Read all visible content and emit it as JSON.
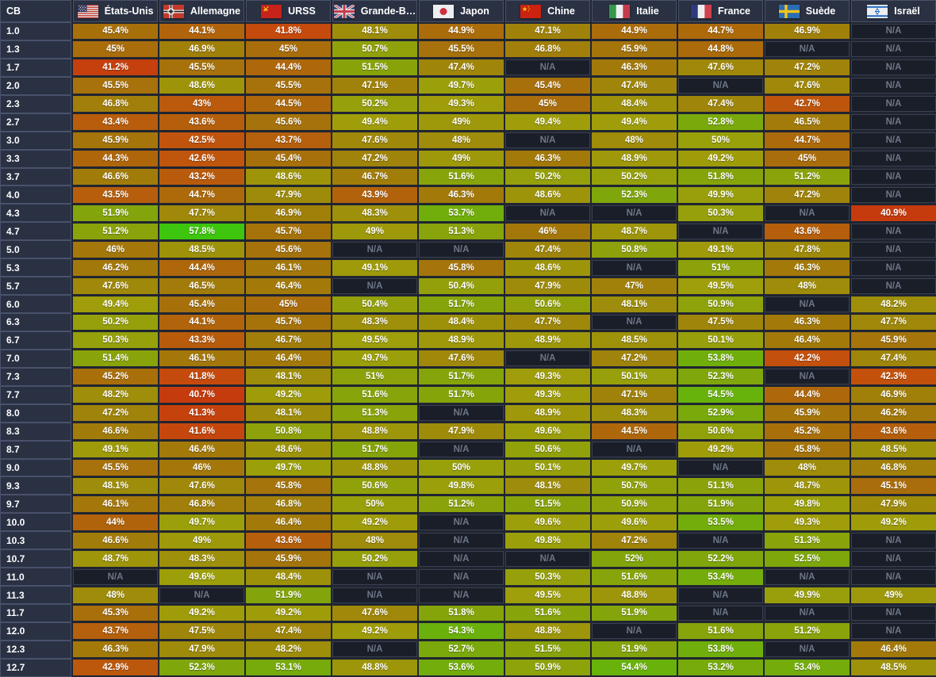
{
  "table": {
    "corner_label": "CB",
    "na_label": "N/A",
    "columns": [
      {
        "label": "États-Unis",
        "flag": "us"
      },
      {
        "label": "Allemagne",
        "flag": "de"
      },
      {
        "label": "URSS",
        "flag": "su"
      },
      {
        "label": "Grande-B…",
        "flag": "gb"
      },
      {
        "label": "Japon",
        "flag": "jp"
      },
      {
        "label": "Chine",
        "flag": "cn"
      },
      {
        "label": "Italie",
        "flag": "it"
      },
      {
        "label": "France",
        "flag": "fr"
      },
      {
        "label": "Suède",
        "flag": "se"
      },
      {
        "label": "Israël",
        "flag": "il"
      }
    ]
  },
  "colors": {
    "gap_bg": "#202531",
    "label_bg": "#2a3143",
    "border": "#49516b",
    "cell_text": "#ffffff",
    "na_bg": "#191e29",
    "na_border": "#394050",
    "na_text": "#6e7787",
    "scale_low": "#bf4a0e",
    "scale_mid": "#9e920a",
    "scale_high": "#3dc40f"
  },
  "chart_data": {
    "type": "heatmap",
    "unit": "%",
    "x_axis_label": "Nation",
    "y_axis_label": "CB",
    "x_categories": [
      "États-Unis",
      "Allemagne",
      "URSS",
      "Grande-B…",
      "Japon",
      "Chine",
      "Italie",
      "France",
      "Suède",
      "Israël"
    ],
    "y_categories": [
      "1.0",
      "1.3",
      "1.7",
      "2.0",
      "2.3",
      "2.7",
      "3.0",
      "3.3",
      "3.7",
      "4.0",
      "4.3",
      "4.7",
      "5.0",
      "5.3",
      "5.7",
      "6.0",
      "6.3",
      "6.7",
      "7.0",
      "7.3",
      "7.7",
      "8.0",
      "8.3",
      "8.7",
      "9.0",
      "9.3",
      "9.7",
      "10.0",
      "10.3",
      "10.7",
      "11.0",
      "11.3",
      "11.7",
      "12.0",
      "12.3",
      "12.7"
    ],
    "color_scale": {
      "low_value": 41,
      "high_value": 58,
      "low_color": "#bf4a0e",
      "high_color": "#3dc40f"
    },
    "values": [
      [
        45.4,
        44.1,
        41.8,
        48.1,
        44.9,
        47.1,
        44.9,
        44.7,
        46.9,
        null
      ],
      [
        45,
        46.9,
        45,
        50.7,
        45.5,
        46.8,
        45.9,
        44.8,
        null,
        null
      ],
      [
        41.2,
        45.5,
        44.4,
        51.5,
        47.4,
        null,
        46.3,
        47.6,
        47.2,
        null
      ],
      [
        45.5,
        48.6,
        45.5,
        47.1,
        49.7,
        45.4,
        47.4,
        null,
        47.6,
        null
      ],
      [
        46.8,
        43,
        44.5,
        50.2,
        49.3,
        45,
        48.4,
        47.4,
        42.7,
        null
      ],
      [
        43.4,
        43.6,
        45.6,
        49.4,
        49,
        49.4,
        49.4,
        52.8,
        46.5,
        null
      ],
      [
        45.9,
        42.5,
        43.7,
        47.6,
        48,
        null,
        48,
        50,
        44.7,
        null
      ],
      [
        44.3,
        42.6,
        45.4,
        47.2,
        49,
        46.3,
        48.9,
        49.2,
        45,
        null
      ],
      [
        46.6,
        43.2,
        48.6,
        46.7,
        51.6,
        50.2,
        50.2,
        51.8,
        51.2,
        null
      ],
      [
        43.5,
        44.7,
        47.9,
        43.9,
        46.3,
        48.6,
        52.3,
        49.9,
        47.2,
        null
      ],
      [
        51.9,
        47.7,
        46.9,
        48.3,
        53.7,
        null,
        null,
        50.3,
        null,
        40.9
      ],
      [
        51.2,
        57.8,
        45.7,
        49,
        51.3,
        46,
        48.7,
        null,
        43.6,
        null
      ],
      [
        46,
        48.5,
        45.6,
        null,
        null,
        47.4,
        50.8,
        49.1,
        47.8,
        null
      ],
      [
        46.2,
        44.4,
        46.1,
        49.1,
        45.8,
        48.6,
        null,
        51,
        46.3,
        null
      ],
      [
        47.6,
        46.5,
        46.4,
        null,
        50.4,
        47.9,
        47,
        49.5,
        48,
        null
      ],
      [
        49.4,
        45.4,
        45,
        50.4,
        51.7,
        50.6,
        48.1,
        50.9,
        null,
        48.2
      ],
      [
        50.2,
        44.1,
        45.7,
        48.3,
        48.4,
        47.7,
        null,
        47.5,
        46.3,
        47.7
      ],
      [
        50.3,
        43.3,
        46.7,
        49.5,
        48.9,
        48.9,
        48.5,
        50.1,
        46.4,
        45.9
      ],
      [
        51.4,
        46.1,
        46.4,
        49.7,
        47.6,
        null,
        47.2,
        53.8,
        42.2,
        47.4
      ],
      [
        45.2,
        41.8,
        48.1,
        51,
        51.7,
        49.3,
        50.1,
        52.3,
        null,
        42.3
      ],
      [
        48.2,
        40.7,
        49.2,
        51.6,
        51.7,
        49.3,
        47.1,
        54.5,
        44.4,
        46.9
      ],
      [
        47.2,
        41.3,
        48.1,
        51.3,
        null,
        48.9,
        48.3,
        52.9,
        45.9,
        46.2
      ],
      [
        46.6,
        41.6,
        50.8,
        48.8,
        47.9,
        49.6,
        44.5,
        50.6,
        45.2,
        43.6
      ],
      [
        49.1,
        46.4,
        48.6,
        51.7,
        null,
        50.6,
        null,
        49.2,
        45.8,
        48.5
      ],
      [
        45.5,
        46,
        49.7,
        48.8,
        50,
        50.1,
        49.7,
        null,
        48,
        46.8
      ],
      [
        48.1,
        47.6,
        45.8,
        50.6,
        49.8,
        48.1,
        50.7,
        51.1,
        48.7,
        45.1
      ],
      [
        46.1,
        46.8,
        46.8,
        50,
        51.2,
        51.5,
        50.9,
        51.9,
        49.8,
        47.9
      ],
      [
        44,
        49.7,
        46.4,
        49.2,
        null,
        49.6,
        49.6,
        53.5,
        49.3,
        49.2
      ],
      [
        46.6,
        49,
        43.6,
        48,
        null,
        49.8,
        47.2,
        null,
        51.3,
        null
      ],
      [
        48.7,
        48.3,
        45.9,
        50.2,
        null,
        null,
        52,
        52.2,
        52.5,
        null
      ],
      [
        null,
        49.6,
        48.4,
        null,
        null,
        50.3,
        51.6,
        53.4,
        null,
        null
      ],
      [
        48,
        null,
        51.9,
        null,
        null,
        49.5,
        48.8,
        null,
        49.9,
        49
      ],
      [
        45.3,
        49.2,
        49.2,
        47.6,
        51.8,
        51.6,
        51.9,
        null,
        null,
        null
      ],
      [
        43.7,
        47.5,
        47.4,
        49.2,
        54.3,
        48.8,
        null,
        51.6,
        51.2,
        null
      ],
      [
        46.3,
        47.9,
        48.2,
        null,
        52.7,
        51.5,
        51.9,
        53.8,
        null,
        46.4
      ],
      [
        42.9,
        52.3,
        53.1,
        48.8,
        53.6,
        50.9,
        54.4,
        53.2,
        53.4,
        48.5
      ]
    ]
  }
}
